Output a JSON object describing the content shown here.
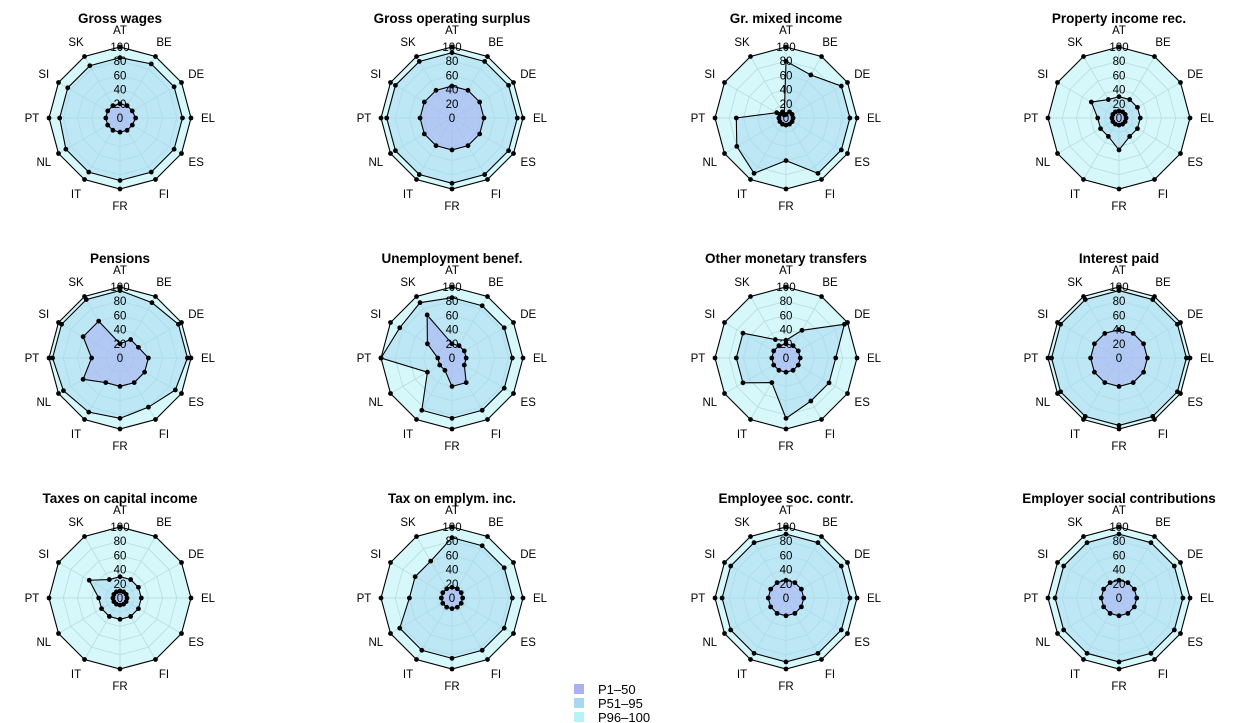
{
  "chart_data": {
    "type": "radar",
    "axes": [
      "AT",
      "BE",
      "DE",
      "EL",
      "ES",
      "FI",
      "FR",
      "IT",
      "NL",
      "PT",
      "SI",
      "SK"
    ],
    "rlim": [
      0,
      100
    ],
    "ticks": [
      0,
      20,
      40,
      60,
      80,
      100
    ],
    "grid": true,
    "legend": {
      "position": "bottom-center",
      "entries": [
        {
          "label": "P1–50",
          "color": "#aab0f2"
        },
        {
          "label": "P51–95",
          "color": "#a8d8f0"
        },
        {
          "label": "P96–100",
          "color": "#b7f3f5"
        }
      ]
    },
    "panels": [
      {
        "title": "Gross wages",
        "series": [
          {
            "name": "P1–50",
            "values": [
              20,
              20,
              20,
              22,
              20,
              20,
              20,
              20,
              20,
              20,
              20,
              20
            ]
          },
          {
            "name": "P51–95",
            "values": [
              85,
              88,
              88,
              88,
              88,
              88,
              88,
              88,
              88,
              85,
              85,
              85
            ]
          },
          {
            "name": "P96–100",
            "values": [
              100,
              100,
              100,
              100,
              100,
              100,
              100,
              100,
              100,
              100,
              100,
              100
            ]
          }
        ]
      },
      {
        "title": "Gross operating surplus",
        "series": [
          {
            "name": "P1–50",
            "values": [
              45,
              45,
              45,
              45,
              45,
              45,
              45,
              45,
              45,
              45,
              45,
              45
            ]
          },
          {
            "name": "P51–95",
            "values": [
              92,
              92,
              92,
              92,
              92,
              92,
              92,
              92,
              92,
              92,
              92,
              92
            ]
          },
          {
            "name": "P96–100",
            "values": [
              100,
              100,
              100,
              100,
              100,
              100,
              100,
              100,
              100,
              100,
              100,
              100
            ]
          }
        ]
      },
      {
        "title": "Gr. mixed income",
        "series": [
          {
            "name": "P1–50",
            "values": [
              5,
              10,
              10,
              10,
              10,
              10,
              10,
              10,
              10,
              10,
              10,
              10
            ]
          },
          {
            "name": "P51–95",
            "values": [
              80,
              70,
              90,
              90,
              90,
              90,
              60,
              90,
              80,
              70,
              15,
              5
            ]
          },
          {
            "name": "P96–100",
            "values": [
              100,
              100,
              100,
              100,
              100,
              100,
              100,
              100,
              100,
              100,
              100,
              100
            ]
          }
        ]
      },
      {
        "title": "Property income rec.",
        "series": [
          {
            "name": "P1–50",
            "values": [
              10,
              10,
              10,
              10,
              10,
              10,
              10,
              10,
              10,
              10,
              10,
              10
            ]
          },
          {
            "name": "P51–95",
            "values": [
              30,
              30,
              30,
              30,
              30,
              30,
              45,
              30,
              30,
              30,
              45,
              30
            ]
          },
          {
            "name": "P96–100",
            "values": [
              100,
              100,
              100,
              100,
              100,
              100,
              100,
              100,
              100,
              100,
              100,
              100
            ]
          }
        ]
      },
      {
        "title": "Pensions",
        "series": [
          {
            "name": "P1–50",
            "values": [
              20,
              30,
              30,
              40,
              40,
              40,
              40,
              40,
              60,
              40,
              60,
              60
            ]
          },
          {
            "name": "P51–95",
            "values": [
              95,
              90,
              95,
              95,
              90,
              80,
              85,
              88,
              92,
              95,
              95,
              95
            ]
          },
          {
            "name": "P96–100",
            "values": [
              100,
              100,
              100,
              100,
              100,
              100,
              100,
              100,
              100,
              100,
              100,
              100
            ]
          }
        ]
      },
      {
        "title": "Unemployment benef.",
        "series": [
          {
            "name": "P1–50",
            "values": [
              20,
              20,
              20,
              20,
              20,
              40,
              40,
              20,
              20,
              20,
              40,
              70
            ]
          },
          {
            "name": "P51–95",
            "values": [
              85,
              85,
              85,
              85,
              85,
              85,
              85,
              85,
              40,
              100,
              85,
              90
            ]
          },
          {
            "name": "P96–100",
            "values": [
              100,
              100,
              100,
              100,
              100,
              100,
              100,
              100,
              100,
              100,
              100,
              100
            ]
          }
        ]
      },
      {
        "title": "Other monetary transfers",
        "series": [
          {
            "name": "P1–50",
            "values": [
              20,
              20,
              20,
              20,
              20,
              20,
              20,
              20,
              20,
              20,
              20,
              20
            ]
          },
          {
            "name": "P51–95",
            "values": [
              25,
              45,
              95,
              70,
              70,
              70,
              85,
              40,
              70,
              70,
              70,
              30
            ]
          },
          {
            "name": "P96–100",
            "values": [
              100,
              100,
              100,
              100,
              100,
              100,
              100,
              100,
              100,
              100,
              100,
              100
            ]
          }
        ]
      },
      {
        "title": "Interest paid",
        "series": [
          {
            "name": "P1–50",
            "values": [
              40,
              40,
              40,
              40,
              40,
              40,
              40,
              40,
              40,
              40,
              40,
              40
            ]
          },
          {
            "name": "P51–95",
            "values": [
              95,
              95,
              95,
              95,
              95,
              95,
              95,
              95,
              95,
              95,
              95,
              95
            ]
          },
          {
            "name": "P96–100",
            "values": [
              100,
              100,
              100,
              100,
              100,
              100,
              100,
              100,
              100,
              100,
              100,
              100
            ]
          }
        ]
      },
      {
        "title": "Taxes on capital income",
        "series": [
          {
            "name": "P1–50",
            "values": [
              10,
              10,
              10,
              10,
              10,
              10,
              10,
              10,
              10,
              10,
              10,
              10
            ]
          },
          {
            "name": "P51–95",
            "values": [
              30,
              30,
              30,
              30,
              30,
              30,
              30,
              30,
              30,
              30,
              50,
              30
            ]
          },
          {
            "name": "P96–100",
            "values": [
              100,
              100,
              100,
              100,
              100,
              100,
              100,
              100,
              100,
              100,
              100,
              100
            ]
          }
        ]
      },
      {
        "title": "Tax on emplym. inc.",
        "series": [
          {
            "name": "P1–50",
            "values": [
              15,
              15,
              15,
              15,
              15,
              15,
              15,
              15,
              15,
              15,
              15,
              15
            ]
          },
          {
            "name": "P51–95",
            "values": [
              85,
              85,
              85,
              85,
              85,
              85,
              85,
              85,
              85,
              60,
              60,
              60
            ]
          },
          {
            "name": "P96–100",
            "values": [
              100,
              100,
              100,
              100,
              100,
              100,
              100,
              100,
              100,
              100,
              100,
              100
            ]
          }
        ]
      },
      {
        "title": "Employee soc. contr.",
        "series": [
          {
            "name": "P1–50",
            "values": [
              25,
              25,
              25,
              25,
              25,
              25,
              25,
              25,
              25,
              25,
              25,
              25
            ]
          },
          {
            "name": "P51–95",
            "values": [
              90,
              90,
              90,
              90,
              90,
              90,
              90,
              90,
              90,
              90,
              90,
              90
            ]
          },
          {
            "name": "P96–100",
            "values": [
              100,
              100,
              100,
              100,
              100,
              100,
              100,
              100,
              100,
              100,
              100,
              100
            ]
          }
        ]
      },
      {
        "title": "Employer social contributions",
        "series": [
          {
            "name": "P1–50",
            "values": [
              25,
              25,
              25,
              25,
              25,
              25,
              25,
              25,
              25,
              25,
              25,
              25
            ]
          },
          {
            "name": "P51–95",
            "values": [
              90,
              90,
              90,
              90,
              90,
              90,
              90,
              90,
              90,
              90,
              90,
              90
            ]
          },
          {
            "name": "P96–100",
            "values": [
              100,
              100,
              100,
              100,
              100,
              100,
              100,
              100,
              100,
              100,
              100,
              100
            ]
          }
        ]
      }
    ]
  }
}
